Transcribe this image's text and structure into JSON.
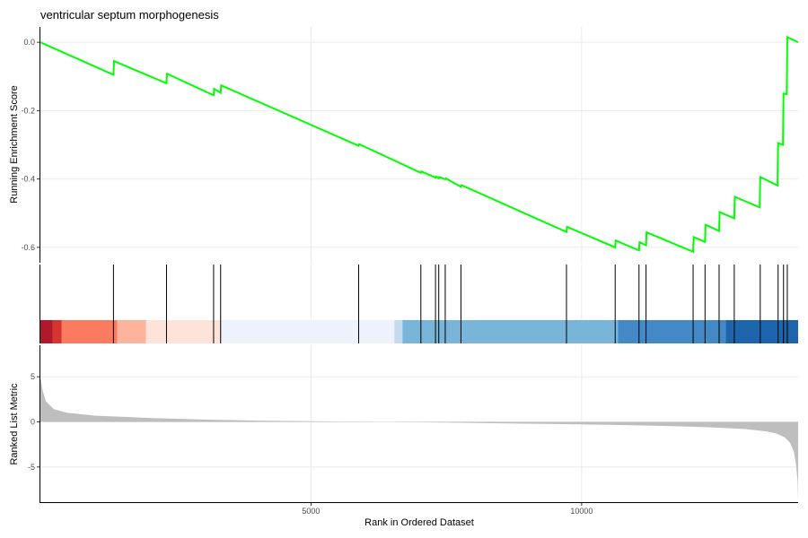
{
  "chart_data": {
    "type": "line",
    "title": "ventricular septum morphogenesis",
    "xlabel": "Rank in Ordered Dataset",
    "xlim": [
      0,
      14000
    ],
    "x_ticks": [
      5000,
      10000
    ],
    "x_tick_labels": [
      "5000",
      "10000"
    ],
    "grid": true,
    "colors": {
      "line": "#00ff00",
      "hit": "#000000",
      "metric_fill": "#bebebe",
      "grid": "#ebebeb",
      "axis": "#000000"
    },
    "enrichment": {
      "ylabel": "Running Enrichment Score",
      "ylim": [
        -0.645,
        0.045
      ],
      "y_ticks": [
        0.0,
        -0.2,
        -0.4,
        -0.6
      ],
      "y_tick_labels": [
        "0.0",
        "-0.2",
        "-0.4",
        "-0.6"
      ],
      "points": [
        [
          0,
          0.0
        ],
        [
          1350,
          -0.095
        ],
        [
          1360,
          -0.055
        ],
        [
          2330,
          -0.12
        ],
        [
          2340,
          -0.092
        ],
        [
          3200,
          -0.155
        ],
        [
          3210,
          -0.136
        ],
        [
          3330,
          -0.148
        ],
        [
          3340,
          -0.126
        ],
        [
          5880,
          -0.303
        ],
        [
          5890,
          -0.298
        ],
        [
          7030,
          -0.382
        ],
        [
          7040,
          -0.378
        ],
        [
          7300,
          -0.396
        ],
        [
          7310,
          -0.393
        ],
        [
          7360,
          -0.398
        ],
        [
          7370,
          -0.394
        ],
        [
          7480,
          -0.401
        ],
        [
          7490,
          -0.398
        ],
        [
          7770,
          -0.423
        ],
        [
          7780,
          -0.418
        ],
        [
          9720,
          -0.555
        ],
        [
          9730,
          -0.54
        ],
        [
          10620,
          -0.6
        ],
        [
          10630,
          -0.58
        ],
        [
          11060,
          -0.609
        ],
        [
          11070,
          -0.585
        ],
        [
          11190,
          -0.594
        ],
        [
          11200,
          -0.556
        ],
        [
          12060,
          -0.613
        ],
        [
          12070,
          -0.57
        ],
        [
          12280,
          -0.584
        ],
        [
          12290,
          -0.534
        ],
        [
          12540,
          -0.552
        ],
        [
          12550,
          -0.497
        ],
        [
          12820,
          -0.515
        ],
        [
          12830,
          -0.452
        ],
        [
          13290,
          -0.483
        ],
        [
          13300,
          -0.394
        ],
        [
          13620,
          -0.419
        ],
        [
          13630,
          -0.295
        ],
        [
          13720,
          -0.3
        ],
        [
          13730,
          -0.15
        ],
        [
          13790,
          -0.152
        ],
        [
          13800,
          0.015
        ],
        [
          14000,
          0.0
        ]
      ]
    },
    "hits": [
      1350,
      2330,
      3200,
      3330,
      5880,
      7030,
      7300,
      7360,
      7480,
      7770,
      9720,
      10620,
      11060,
      11190,
      12060,
      12280,
      12540,
      12820,
      13300,
      13630,
      13730,
      13800
    ],
    "color_bar": [
      {
        "from": 0,
        "to": 230,
        "color": "#b2182b"
      },
      {
        "from": 230,
        "to": 390,
        "color": "#d6352f"
      },
      {
        "from": 390,
        "to": 1420,
        "color": "#fb7b61"
      },
      {
        "from": 1420,
        "to": 1950,
        "color": "#fcb59c"
      },
      {
        "from": 1950,
        "to": 3350,
        "color": "#fde3d8"
      },
      {
        "from": 3350,
        "to": 6540,
        "color": "#edf3fc"
      },
      {
        "from": 6540,
        "to": 6690,
        "color": "#c4dbee"
      },
      {
        "from": 6690,
        "to": 10670,
        "color": "#79b4d9"
      },
      {
        "from": 10670,
        "to": 12660,
        "color": "#4289c6"
      },
      {
        "from": 12660,
        "to": 14000,
        "color": "#1c64ac"
      }
    ],
    "ranked_metric": {
      "ylabel": "Ranked List Metric",
      "ylim": [
        -9.0,
        8.5
      ],
      "y_ticks": [
        5,
        0,
        -5
      ],
      "y_tick_labels": [
        "5",
        "0",
        "-5"
      ],
      "curve": [
        [
          0,
          5.0
        ],
        [
          40,
          3.5
        ],
        [
          100,
          2.3
        ],
        [
          250,
          1.4
        ],
        [
          500,
          1.0
        ],
        [
          1000,
          0.7
        ],
        [
          2000,
          0.43
        ],
        [
          3000,
          0.26
        ],
        [
          4000,
          0.14
        ],
        [
          5000,
          0.07
        ],
        [
          6000,
          0.02
        ],
        [
          6700,
          -0.02
        ],
        [
          7500,
          -0.08
        ],
        [
          8500,
          -0.16
        ],
        [
          9500,
          -0.24
        ],
        [
          10500,
          -0.33
        ],
        [
          11500,
          -0.45
        ],
        [
          12300,
          -0.58
        ],
        [
          13000,
          -0.78
        ],
        [
          13400,
          -1.05
        ],
        [
          13600,
          -1.3
        ],
        [
          13750,
          -1.7
        ],
        [
          13850,
          -2.3
        ],
        [
          13920,
          -3.3
        ],
        [
          13960,
          -4.7
        ],
        [
          13990,
          -6.5
        ],
        [
          14000,
          -8.8
        ]
      ]
    }
  }
}
